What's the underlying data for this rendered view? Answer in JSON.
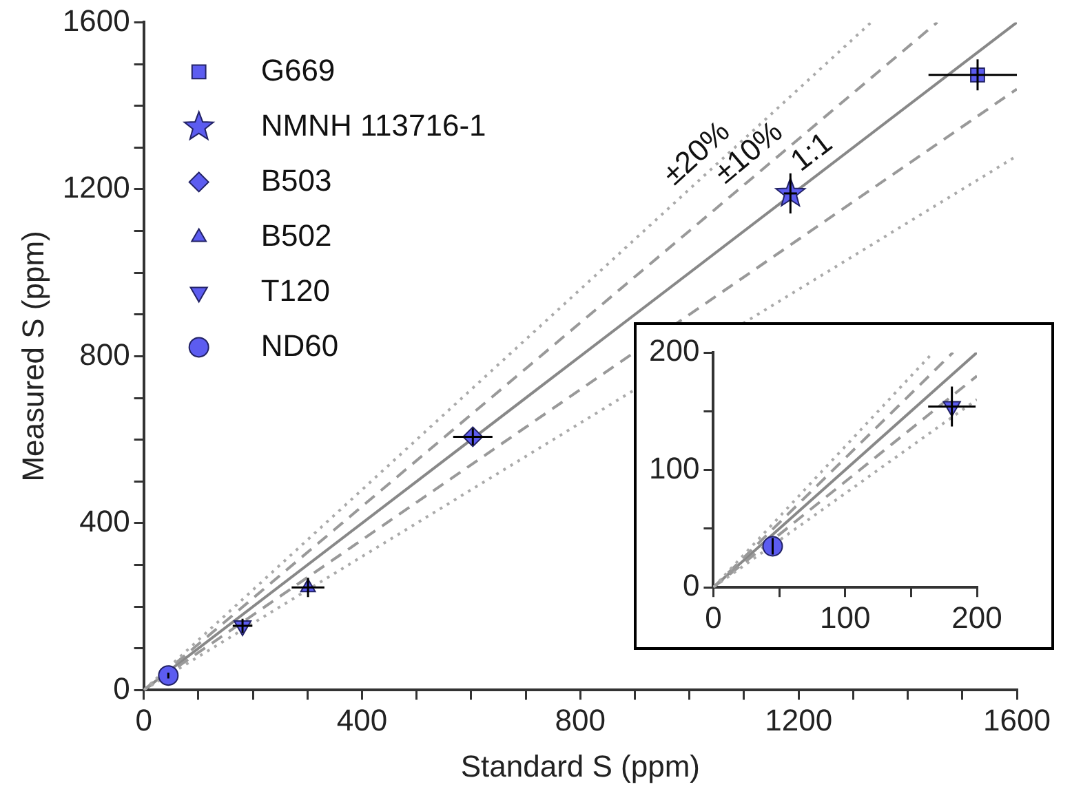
{
  "chart_data": [
    {
      "type": "scatter",
      "xlabel": "Standard S (ppm)",
      "ylabel": "Measured S (ppm)",
      "xlim": [
        0,
        1600
      ],
      "ylim": [
        0,
        1600
      ],
      "xticks": [
        0,
        {
          "value": 100,
          "label": null
        },
        {
          "value": 200,
          "label": null
        },
        {
          "value": 300,
          "label": null
        },
        400,
        {
          "value": 500,
          "label": null
        },
        {
          "value": 600,
          "label": null
        },
        {
          "value": 700,
          "label": null
        },
        800,
        {
          "value": 900,
          "label": null
        },
        {
          "value": 1000,
          "label": null
        },
        {
          "value": 1100,
          "label": null
        },
        1200,
        {
          "value": 1300,
          "label": null
        },
        {
          "value": 1400,
          "label": null
        },
        {
          "value": 1500,
          "label": null
        },
        1600
      ],
      "yticks": [
        0,
        {
          "value": 100,
          "label": null
        },
        {
          "value": 200,
          "label": null
        },
        {
          "value": 300,
          "label": null
        },
        400,
        {
          "value": 500,
          "label": null
        },
        {
          "value": 600,
          "label": null
        },
        {
          "value": 700,
          "label": null
        },
        800,
        {
          "value": 900,
          "label": null
        },
        {
          "value": 1000,
          "label": null
        },
        {
          "value": 1100,
          "label": null
        },
        1200,
        {
          "value": 1300,
          "label": null
        },
        {
          "value": 1400,
          "label": null
        },
        {
          "value": 1500,
          "label": null
        },
        1600
      ],
      "grid": false,
      "legend": "top left",
      "series": [
        {
          "type": "line",
          "name": "±20%",
          "x": [
            0,
            1333
          ],
          "values": [
            0,
            1600
          ],
          "color": "#aaaaaa",
          "line_style": "dotted"
        },
        {
          "type": "line",
          "x": [
            0,
            1600
          ],
          "values": [
            0,
            1280
          ],
          "color": "#aaaaaa",
          "line_style": "dotted"
        },
        {
          "type": "line",
          "name": "±10%",
          "x": [
            0,
            1454
          ],
          "values": [
            0,
            1600
          ],
          "color": "#999999",
          "line_style": "dashed"
        },
        {
          "type": "line",
          "x": [
            0,
            1600
          ],
          "values": [
            0,
            1440
          ],
          "color": "#999999",
          "line_style": "dashed"
        },
        {
          "type": "line",
          "name": "1:1",
          "x": [
            0,
            1600
          ],
          "values": [
            0,
            1600
          ],
          "color": "#888888",
          "line_style": "solid"
        },
        {
          "type": "scatter",
          "name": "G669",
          "x": [
            1528
          ],
          "values": [
            1474
          ],
          "xerrors": [
            90
          ],
          "errors": [
            37
          ],
          "color": "#5c5cf0",
          "marker": "square"
        },
        {
          "type": "scatter",
          "name": "NMNH 113716-1",
          "x": [
            1185
          ],
          "values": [
            1190
          ],
          "xerrors": [
            12
          ],
          "errors": [
            48
          ],
          "color": "#5c5cf0",
          "marker": "star"
        },
        {
          "type": "scatter",
          "name": "B503",
          "x": [
            603
          ],
          "values": [
            607
          ],
          "xerrors": [
            36
          ],
          "errors": [
            20
          ],
          "color": "#5c5cf0",
          "marker": "diamond"
        },
        {
          "type": "scatter",
          "name": "B502",
          "x": [
            301
          ],
          "values": [
            246
          ],
          "xerrors": [
            30
          ],
          "errors": [
            23
          ],
          "color": "#5c5cf0",
          "marker": "triangle"
        },
        {
          "type": "scatter",
          "name": "T120",
          "x": [
            181
          ],
          "values": [
            154
          ],
          "xerrors": [
            18
          ],
          "errors": [
            17
          ],
          "color": "#5c5cf0",
          "marker": "triangle-down"
        },
        {
          "type": "scatter",
          "name": "ND60",
          "x": [
            45
          ],
          "values": [
            35
          ],
          "errors": [
            7
          ],
          "color": "#5c5cf0",
          "marker": "circle"
        }
      ]
    },
    {
      "type": "scatter",
      "xlim": [
        0,
        200
      ],
      "ylim": [
        0,
        200
      ],
      "xticks": [
        0,
        {
          "value": 50,
          "label": null
        },
        100,
        {
          "value": 150,
          "label": null
        },
        200
      ],
      "yticks": [
        0,
        {
          "value": 50,
          "label": null
        },
        100,
        {
          "value": 150,
          "label": null
        },
        200
      ],
      "grid": false,
      "series": [
        {
          "type": "line",
          "x": [
            0,
            166.7
          ],
          "values": [
            0,
            200
          ],
          "color": "#aaaaaa",
          "line_style": "dotted"
        },
        {
          "type": "line",
          "x": [
            0,
            200
          ],
          "values": [
            0,
            160
          ],
          "color": "#aaaaaa",
          "line_style": "dotted"
        },
        {
          "type": "line",
          "x": [
            0,
            181.8
          ],
          "values": [
            0,
            200
          ],
          "color": "#999999",
          "line_style": "dashed"
        },
        {
          "type": "line",
          "x": [
            0,
            200
          ],
          "values": [
            0,
            180
          ],
          "color": "#999999",
          "line_style": "dashed"
        },
        {
          "type": "line",
          "x": [
            0,
            200
          ],
          "values": [
            0,
            200
          ],
          "color": "#888888",
          "line_style": "solid"
        },
        {
          "type": "scatter",
          "x": [
            181
          ],
          "values": [
            154
          ],
          "xerrors": [
            18
          ],
          "errors": [
            17
          ],
          "color": "#5c5cf0",
          "marker": "triangle-down"
        },
        {
          "type": "scatter",
          "x": [
            45
          ],
          "values": [
            35
          ],
          "errors": [
            7
          ],
          "color": "#5c5cf0",
          "marker": "circle"
        }
      ]
    }
  ]
}
